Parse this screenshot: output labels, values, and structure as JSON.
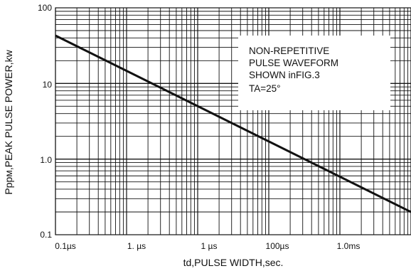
{
  "chart_data": {
    "type": "line",
    "xscale": "log",
    "yscale": "log",
    "xlabel": "td,PULSE WIDTH,sec.",
    "ylabel": "Pppм,PEAK PULSE POWER,kw",
    "x_ticks": [
      "0.1µs",
      "1. µs",
      "1 µs",
      "100µs",
      "1.0ms"
    ],
    "y_ticks": [
      "100",
      "10",
      "1.0",
      "0.1"
    ],
    "xlim_decades": [
      0,
      5
    ],
    "ylim": [
      0.1,
      100
    ],
    "grid": true,
    "series": [
      {
        "points": [
          {
            "x_decade": 0.0,
            "y": 43
          },
          {
            "x_decade": 5.0,
            "y": 0.2
          }
        ]
      }
    ],
    "annotation": {
      "lines": [
        "NON-REPETITIVE",
        "PULSE WAVEFORM",
        "SHOWN inFIG.3",
        "TA=25°"
      ]
    }
  }
}
